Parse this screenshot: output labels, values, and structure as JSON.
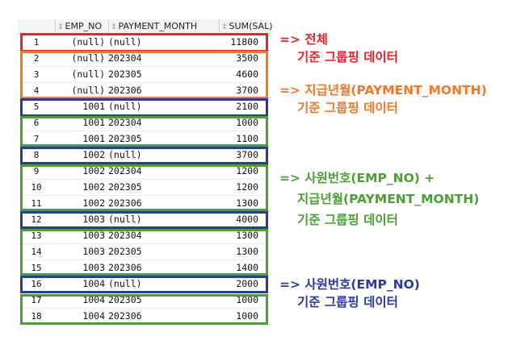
{
  "columns": {
    "emp_no": "EMP_NO",
    "payment_month": "PAYMENT_MONTH",
    "sum_sal": "SUM(SAL)"
  },
  "rows": [
    {
      "rn": "1",
      "emp": "(null)",
      "pm": "(null)",
      "sal": "11800"
    },
    {
      "rn": "2",
      "emp": "(null)",
      "pm": "202304",
      "sal": "3500"
    },
    {
      "rn": "3",
      "emp": "(null)",
      "pm": "202305",
      "sal": "4600"
    },
    {
      "rn": "4",
      "emp": "(null)",
      "pm": "202306",
      "sal": "3700"
    },
    {
      "rn": "5",
      "emp": "1001",
      "pm": "(null)",
      "sal": "2100"
    },
    {
      "rn": "6",
      "emp": "1001",
      "pm": "202304",
      "sal": "1000"
    },
    {
      "rn": "7",
      "emp": "1001",
      "pm": "202305",
      "sal": "1100"
    },
    {
      "rn": "8",
      "emp": "1002",
      "pm": "(null)",
      "sal": "3700"
    },
    {
      "rn": "9",
      "emp": "1002",
      "pm": "202304",
      "sal": "1200"
    },
    {
      "rn": "10",
      "emp": "1002",
      "pm": "202305",
      "sal": "1200"
    },
    {
      "rn": "11",
      "emp": "1002",
      "pm": "202306",
      "sal": "1300"
    },
    {
      "rn": "12",
      "emp": "1003",
      "pm": "(null)",
      "sal": "4000"
    },
    {
      "rn": "13",
      "emp": "1003",
      "pm": "202304",
      "sal": "1300"
    },
    {
      "rn": "14",
      "emp": "1003",
      "pm": "202305",
      "sal": "1300"
    },
    {
      "rn": "15",
      "emp": "1003",
      "pm": "202306",
      "sal": "1400"
    },
    {
      "rn": "16",
      "emp": "1004",
      "pm": "(null)",
      "sal": "2000"
    },
    {
      "rn": "17",
      "emp": "1004",
      "pm": "202305",
      "sal": "1000"
    },
    {
      "rn": "18",
      "emp": "1004",
      "pm": "202306",
      "sal": "1000"
    }
  ],
  "annotations": {
    "total": {
      "line1": "=> 전체",
      "line2": "기준 그룹핑 데이터"
    },
    "month": {
      "line1": "=> 지급년월(PAYMENT_MONTH)",
      "line2": "기준 그룹핑 데이터"
    },
    "emp_month": {
      "line1": "=> 사원번호(EMP_NO)  +",
      "line2": "지급년월(PAYMENT_MONTH)",
      "line3": "기준 그룹핑 데이터"
    },
    "emp": {
      "line1": "=> 사원번호(EMP_NO)",
      "line2": "기준 그룹핑 데이터"
    }
  },
  "colors": {
    "red": "#e8252c",
    "orange": "#f07a2a",
    "green": "#4aa033",
    "blue": "#2b3aa0"
  }
}
